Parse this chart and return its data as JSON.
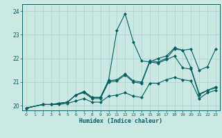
{
  "xlabel": "Humidex (Indice chaleur)",
  "bg_color": "#cce8e4",
  "grid_color": "#b0d4d0",
  "line_color": "#006060",
  "xlim": [
    -0.5,
    23.5
  ],
  "ylim": [
    19.8,
    24.3
  ],
  "yticks": [
    20,
    21,
    22,
    23,
    24
  ],
  "xticks": [
    0,
    1,
    2,
    3,
    4,
    5,
    6,
    7,
    8,
    9,
    10,
    11,
    12,
    13,
    14,
    15,
    16,
    17,
    18,
    19,
    20,
    21,
    22,
    23
  ],
  "series_spike_x": [
    0,
    2,
    3,
    4,
    5,
    6,
    7,
    8,
    9,
    10,
    11,
    12,
    13,
    14,
    15,
    16,
    17,
    18,
    19,
    20,
    21,
    22,
    23
  ],
  "series_spike_y": [
    19.9,
    20.05,
    20.05,
    20.1,
    20.15,
    20.45,
    20.6,
    20.35,
    20.35,
    21.1,
    23.2,
    23.9,
    22.7,
    21.9,
    21.85,
    22.0,
    22.1,
    22.45,
    22.35,
    21.6,
    20.5,
    20.65,
    20.8
  ],
  "series_high_x": [
    0,
    2,
    3,
    4,
    5,
    6,
    7,
    8,
    9,
    10,
    11,
    12,
    13,
    14,
    15,
    16,
    17,
    18,
    19,
    20,
    21,
    22,
    23
  ],
  "series_high_y": [
    19.9,
    20.05,
    20.05,
    20.1,
    20.15,
    20.45,
    20.6,
    20.35,
    20.35,
    21.05,
    21.1,
    21.35,
    21.05,
    21.0,
    21.9,
    21.85,
    22.0,
    22.4,
    22.35,
    22.4,
    21.5,
    21.65,
    22.4
  ],
  "series_mid_x": [
    0,
    2,
    3,
    4,
    5,
    6,
    7,
    8,
    9,
    10,
    11,
    12,
    13,
    14,
    15,
    16,
    17,
    18,
    19,
    20,
    21,
    22,
    23
  ],
  "series_mid_y": [
    19.9,
    20.05,
    20.05,
    20.1,
    20.15,
    20.45,
    20.55,
    20.3,
    20.3,
    21.0,
    21.05,
    21.3,
    21.0,
    20.95,
    21.85,
    21.8,
    21.95,
    22.1,
    21.6,
    21.55,
    20.45,
    20.65,
    20.75
  ],
  "series_low_x": [
    0,
    2,
    3,
    4,
    5,
    6,
    7,
    8,
    9,
    10,
    11,
    12,
    13,
    14,
    15,
    16,
    17,
    18,
    19,
    20,
    21,
    22,
    23
  ],
  "series_low_y": [
    19.9,
    20.05,
    20.05,
    20.05,
    20.1,
    20.2,
    20.3,
    20.15,
    20.15,
    20.4,
    20.45,
    20.55,
    20.4,
    20.35,
    20.95,
    20.95,
    21.1,
    21.2,
    21.1,
    21.05,
    20.3,
    20.55,
    20.65
  ],
  "marker": "D",
  "markersize": 2.0,
  "linewidth": 0.8
}
